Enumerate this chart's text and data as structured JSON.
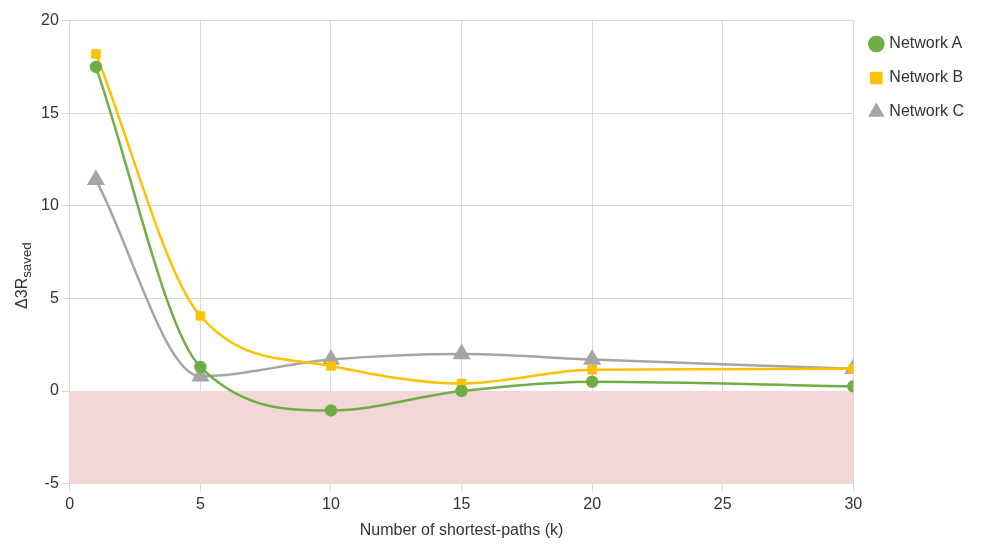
{
  "chart_data": {
    "type": "line",
    "xlabel": "Number of shortest-paths (k)",
    "ylabel": "Δ3R$_{saved}$",
    "x": [
      1,
      5,
      10,
      15,
      20,
      30
    ],
    "series": [
      {
        "name": "Network A",
        "color": "#70ad47",
        "marker": "circle",
        "values": [
          17.5,
          1.3,
          -1.05,
          0,
          0.5,
          0.25
        ]
      },
      {
        "name": "Network B",
        "color": "#ffc000",
        "marker": "square",
        "values": [
          18.2,
          4.05,
          1.35,
          0.4,
          1.15,
          1.2
        ]
      },
      {
        "name": "Network C",
        "color": "#a5a5a5",
        "marker": "triangle",
        "values": [
          11.4,
          0.8,
          1.7,
          2.0,
          1.7,
          1.2
        ]
      }
    ],
    "xlim": [
      0,
      30
    ],
    "xticks": [
      0,
      5,
      10,
      15,
      20,
      25,
      30
    ],
    "ylim": [
      -5,
      20
    ],
    "yticks": [
      -5,
      0,
      5,
      10,
      15,
      20
    ],
    "bands": [
      {
        "axis": "y",
        "from": -5,
        "to": 0,
        "color": "#f2d7d7"
      }
    ],
    "grid": true,
    "legend": "top right"
  }
}
